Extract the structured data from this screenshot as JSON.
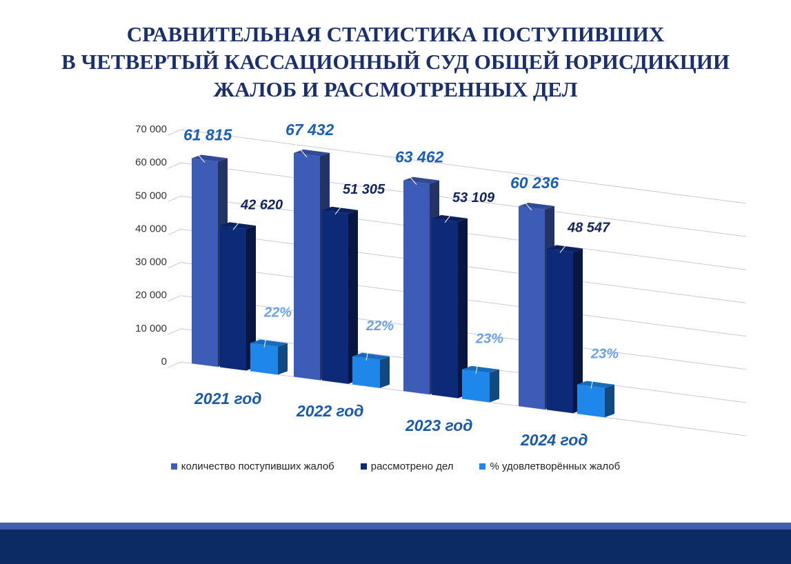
{
  "title_lines": [
    "СРАВНИТЕЛЬНАЯ СТАТИСТИКА ПОСТУПИВШИХ",
    "В ЧЕТВЕРТЫЙ КАССАЦИОННЫЙ СУД ОБЩЕЙ ЮРИСДИКЦИИ",
    "ЖАЛОБ И РАССМОТРЕННЫХ ДЕЛ"
  ],
  "chart_data": {
    "type": "bar",
    "style": "3d-clustered-column",
    "categories": [
      "2021 год",
      "2022 год",
      "2023 год",
      "2024 год"
    ],
    "series": [
      {
        "name": "количество поступивших жалоб",
        "values": [
          61815,
          67432,
          63462,
          60236
        ],
        "labels": [
          "61 815",
          "67 432",
          "63 462",
          "60 236"
        ],
        "color": "#3d5cb8"
      },
      {
        "name": "рассмотрено дел",
        "values": [
          42620,
          51305,
          53109,
          48547
        ],
        "labels": [
          "42 620",
          "51 305",
          "53 109",
          "48 547"
        ],
        "color": "#0d2a78"
      },
      {
        "name": "% удовлетворённых жалоб",
        "values": [
          22,
          22,
          23,
          23
        ],
        "labels": [
          "22%",
          "22%",
          "23%",
          "23%"
        ],
        "color": "#1f86ea"
      }
    ],
    "y_ticks": [
      "0",
      "10 000",
      "20 000",
      "30 000",
      "40 000",
      "50 000",
      "60 000",
      "70 000"
    ],
    "ylim": [
      0,
      70000
    ],
    "grid": true,
    "legend_position": "bottom",
    "label_colors": [
      "#1a5fb4",
      "#14245c",
      "#6aa2e8"
    ],
    "category_label_color": "#1a5aa8"
  }
}
